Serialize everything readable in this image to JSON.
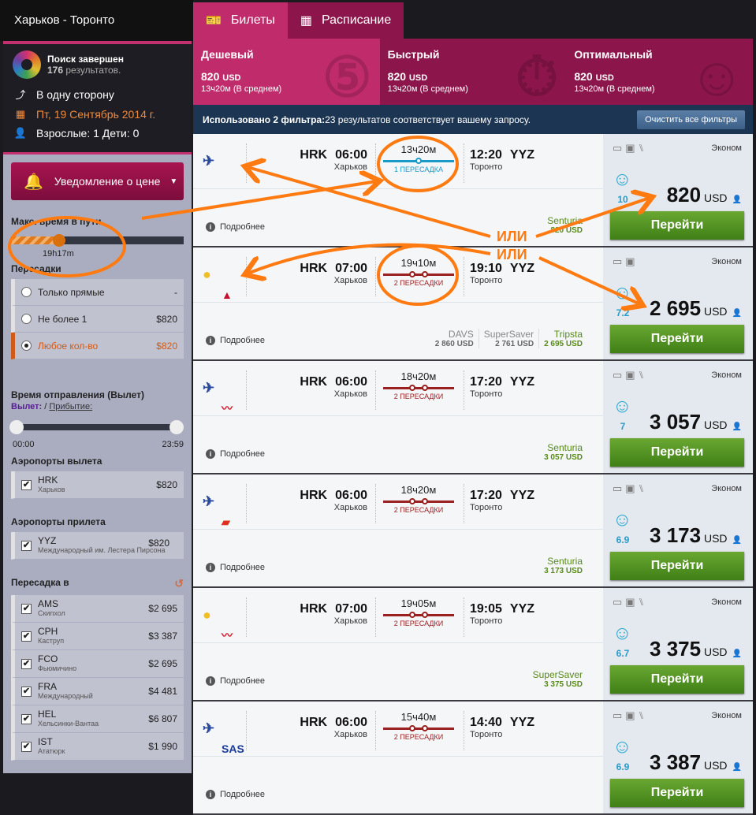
{
  "title": "Харьков - Торонто",
  "status": {
    "done": "Поиск завершен",
    "count": "176",
    "count_suffix": " результатов.",
    "trip": "В одну сторону",
    "date": "Пт, 19 Сентябрь 2014 г.",
    "pax": "Взрослые: 1 Дети: 0"
  },
  "alert_button": "Уведомление о цене",
  "max_time": {
    "label": "Макс. время в пути",
    "value": "19h17m",
    "fraction": 0.28
  },
  "stops": {
    "label": "Пересадки",
    "options": [
      {
        "label": "Только прямые",
        "price": "-"
      },
      {
        "label": "Не более 1",
        "price": "$820"
      },
      {
        "label": "Любое кол-во",
        "price": "$820",
        "selected": true
      }
    ]
  },
  "dep_time": {
    "label": "Время отправления (Вылет)",
    "dep": "Вылет:",
    "sep": " / ",
    "arr": "Прибытие:",
    "min": "00:00",
    "max": "23:59"
  },
  "dep_airports": {
    "label": "Аэропорты вылета",
    "items": [
      {
        "code": "HRK",
        "name": "Харьков",
        "price": "$820"
      }
    ]
  },
  "arr_airports": {
    "label": "Аэропорты прилета",
    "items": [
      {
        "code": "YYZ",
        "name": "Международный им. Лестера Пирсона",
        "price": "$820"
      }
    ]
  },
  "transfer": {
    "label": "Пересадка в",
    "items": [
      {
        "code": "AMS",
        "name": "Скипхол",
        "price": "$2 695"
      },
      {
        "code": "CPH",
        "name": "Каструп",
        "price": "$3 387"
      },
      {
        "code": "FCO",
        "name": "Фьюмичино",
        "price": "$2 695"
      },
      {
        "code": "FRA",
        "name": "Международный",
        "price": "$4 481"
      },
      {
        "code": "HEL",
        "name": "Хельсинки-Вантаа",
        "price": "$6 807"
      },
      {
        "code": "IST",
        "name": "Ататюрк",
        "price": "$1 990"
      }
    ]
  },
  "tabs": [
    {
      "label": "Билеты",
      "icon": "ticket-icon"
    },
    {
      "label": "Расписание",
      "icon": "calendar-icon"
    }
  ],
  "summary": [
    {
      "title": "Дешевый",
      "price": "820",
      "cur": "USD",
      "dur": "13ч20м (В среднем)"
    },
    {
      "title": "Быстрый",
      "price": "820",
      "cur": "USD",
      "dur": "13ч20м (В среднем)"
    },
    {
      "title": "Оптимальный",
      "price": "820",
      "cur": "USD",
      "dur": "13ч20м (В среднем)"
    }
  ],
  "filters": {
    "bold": "Использовано 2 фильтра:",
    "text": " 23 результатов соответствует вашему запросу.",
    "clear": "Очистить все фильтры"
  },
  "common": {
    "from": "HRK",
    "from_city": "Харьков",
    "to": "YYZ",
    "to_city": "Торонто",
    "details": "Подробнее",
    "class": "Эконом",
    "go": "Перейти",
    "cur": "USD"
  },
  "annotation": {
    "text": "ИЛИ",
    "color": "#ff7a10"
  },
  "results": [
    {
      "airlines": [
        "aeroflot"
      ],
      "dep": "06:00",
      "dur": "13ч20м",
      "stops": "1 ПЕРЕСАДКА",
      "nstops": 1,
      "arr": "12:20",
      "rating": "10",
      "price": "820",
      "amenities": 3,
      "agents": [
        {
          "name": "Senturia",
          "price": "820 USD",
          "best": true
        }
      ]
    },
    {
      "airlines": [
        "ukraine-intl",
        "delta"
      ],
      "dep": "07:00",
      "dur": "19ч10м",
      "stops": "2 ПЕРЕСАДКИ",
      "nstops": 2,
      "arr": "19:10",
      "rating": "7.2",
      "price": "2 695",
      "amenities": 2,
      "agents": [
        {
          "name": "DAVS",
          "price": "2 860 USD"
        },
        {
          "name": "SuperSaver",
          "price": "2 761 USD"
        },
        {
          "name": "Tripsta",
          "price": "2 695 USD",
          "best": true
        }
      ]
    },
    {
      "airlines": [
        "aeroflot",
        "british-airways"
      ],
      "dep": "06:00",
      "dur": "18ч20м",
      "stops": "2 ПЕРЕСАДКИ",
      "nstops": 2,
      "arr": "17:20",
      "rating": "7",
      "price": "3 057",
      "amenities": 3,
      "agents": [
        {
          "name": "Senturia",
          "price": "3 057 USD",
          "best": true
        }
      ]
    },
    {
      "airlines": [
        "aeroflot",
        "iberia"
      ],
      "dep": "06:00",
      "dur": "18ч20м",
      "stops": "2 ПЕРЕСАДКИ",
      "nstops": 2,
      "arr": "17:20",
      "rating": "6.9",
      "price": "3 173",
      "amenities": 3,
      "agents": [
        {
          "name": "Senturia",
          "price": "3 173 USD",
          "best": true
        }
      ]
    },
    {
      "airlines": [
        "ukraine-intl",
        "british-airways"
      ],
      "dep": "07:00",
      "dur": "19ч05м",
      "stops": "2 ПЕРЕСАДКИ",
      "nstops": 2,
      "arr": "19:05",
      "rating": "6.7",
      "price": "3 375",
      "amenities": 3,
      "agents": [
        {
          "name": "SuperSaver",
          "price": "3 375 USD",
          "best": true
        }
      ]
    },
    {
      "airlines": [
        "aeroflot",
        "sas"
      ],
      "dep": "06:00",
      "dur": "15ч40м",
      "stops": "2 ПЕРЕСАДКИ",
      "nstops": 2,
      "arr": "14:40",
      "rating": "6.9",
      "price": "3 387",
      "amenities": 3,
      "agents": []
    }
  ]
}
